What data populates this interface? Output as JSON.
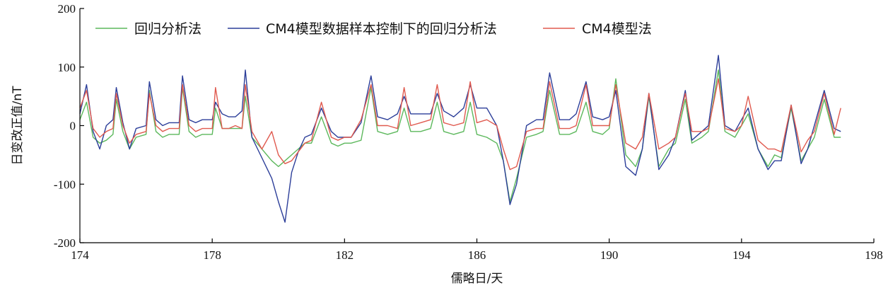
{
  "chart_data": {
    "type": "line",
    "title": "",
    "xlabel": "儒略日/天",
    "ylabel": "日变改正值/nT",
    "xlim": [
      174,
      198
    ],
    "ylim": [
      -200,
      200
    ],
    "x_ticks": [
      174,
      178,
      182,
      186,
      190,
      194,
      198
    ],
    "y_ticks": [
      -200,
      -100,
      0,
      100,
      200
    ],
    "grid": false,
    "legend_position": "top-left",
    "series": [
      {
        "name": "回归分析法",
        "color": "#5cb85c",
        "x": [
          174.0,
          174.2,
          174.4,
          174.6,
          174.8,
          175.0,
          175.1,
          175.3,
          175.5,
          175.7,
          176.0,
          176.1,
          176.3,
          176.5,
          176.7,
          177.0,
          177.1,
          177.3,
          177.5,
          177.7,
          178.0,
          178.1,
          178.3,
          178.5,
          178.7,
          178.9,
          179.0,
          179.2,
          179.5,
          179.8,
          180.0,
          180.2,
          180.4,
          180.6,
          180.8,
          181.0,
          181.3,
          181.6,
          181.8,
          182.0,
          182.2,
          182.5,
          182.8,
          183.0,
          183.3,
          183.6,
          183.8,
          184.0,
          184.3,
          184.6,
          184.8,
          185.0,
          185.3,
          185.6,
          185.8,
          186.0,
          186.3,
          186.6,
          186.8,
          187.0,
          187.2,
          187.5,
          187.8,
          188.0,
          188.2,
          188.5,
          188.8,
          189.0,
          189.3,
          189.5,
          189.8,
          190.0,
          190.2,
          190.5,
          190.8,
          191.0,
          191.2,
          191.5,
          191.8,
          192.0,
          192.3,
          192.5,
          192.8,
          193.0,
          193.3,
          193.5,
          193.8,
          194.0,
          194.2,
          194.5,
          194.8,
          195.0,
          195.2,
          195.5,
          195.8,
          196.0,
          196.2,
          196.5,
          196.8,
          197.0
        ],
        "values": [
          10,
          40,
          -20,
          -30,
          -25,
          -15,
          45,
          -10,
          -40,
          -20,
          -15,
          60,
          -10,
          -20,
          -15,
          -15,
          65,
          -10,
          -20,
          -15,
          -15,
          30,
          -5,
          -5,
          -5,
          -5,
          50,
          -20,
          -40,
          -60,
          -70,
          -60,
          -50,
          -40,
          -30,
          -30,
          15,
          -30,
          -35,
          -30,
          -30,
          -25,
          65,
          -10,
          -15,
          -10,
          30,
          -10,
          -10,
          -5,
          40,
          -10,
          -15,
          -10,
          40,
          -15,
          -20,
          -30,
          -60,
          -130,
          -90,
          -20,
          -15,
          -10,
          60,
          -15,
          -15,
          -10,
          40,
          -10,
          -15,
          -5,
          80,
          -50,
          -70,
          -40,
          50,
          -70,
          -40,
          -30,
          45,
          -30,
          -20,
          -10,
          95,
          -10,
          -20,
          0,
          20,
          -40,
          -70,
          -50,
          -55,
          30,
          -60,
          -40,
          -20,
          45,
          -20,
          -20
        ]
      },
      {
        "name": "CM4模型数据样本控制下的回归分析法",
        "color": "#2c3e99",
        "x": [
          174.0,
          174.2,
          174.4,
          174.6,
          174.8,
          175.0,
          175.1,
          175.3,
          175.5,
          175.7,
          176.0,
          176.1,
          176.3,
          176.5,
          176.7,
          177.0,
          177.1,
          177.3,
          177.5,
          177.7,
          178.0,
          178.1,
          178.3,
          178.5,
          178.7,
          178.9,
          179.0,
          179.2,
          179.5,
          179.8,
          180.0,
          180.2,
          180.4,
          180.6,
          180.8,
          181.0,
          181.3,
          181.6,
          181.8,
          182.0,
          182.2,
          182.5,
          182.8,
          183.0,
          183.3,
          183.6,
          183.8,
          184.0,
          184.3,
          184.6,
          184.8,
          185.0,
          185.3,
          185.6,
          185.8,
          186.0,
          186.3,
          186.6,
          186.8,
          187.0,
          187.2,
          187.5,
          187.8,
          188.0,
          188.2,
          188.5,
          188.8,
          189.0,
          189.3,
          189.5,
          189.8,
          190.0,
          190.2,
          190.5,
          190.8,
          191.0,
          191.2,
          191.5,
          191.8,
          192.0,
          192.3,
          192.5,
          192.8,
          193.0,
          193.3,
          193.5,
          193.8,
          194.0,
          194.2,
          194.5,
          194.8,
          195.0,
          195.2,
          195.5,
          195.8,
          196.0,
          196.2,
          196.5,
          196.8,
          197.0
        ],
        "values": [
          20,
          70,
          -10,
          -40,
          0,
          10,
          65,
          5,
          -40,
          -5,
          0,
          75,
          10,
          0,
          5,
          5,
          85,
          10,
          5,
          10,
          10,
          40,
          20,
          15,
          15,
          25,
          95,
          -20,
          -55,
          -90,
          -130,
          -165,
          -80,
          -45,
          -20,
          -15,
          30,
          -10,
          -20,
          -20,
          -20,
          5,
          85,
          15,
          10,
          20,
          50,
          20,
          20,
          20,
          55,
          25,
          15,
          30,
          70,
          30,
          30,
          0,
          -60,
          -135,
          -100,
          0,
          10,
          10,
          90,
          10,
          10,
          20,
          75,
          15,
          10,
          15,
          60,
          -70,
          -85,
          -40,
          55,
          -75,
          -50,
          -20,
          60,
          -25,
          -10,
          0,
          120,
          0,
          -10,
          10,
          30,
          -40,
          -75,
          -60,
          -60,
          35,
          -65,
          -40,
          0,
          60,
          -5,
          -10
        ]
      },
      {
        "name": "CM4模型法",
        "color": "#e05a4f",
        "x": [
          174.0,
          174.2,
          174.4,
          174.6,
          174.8,
          175.0,
          175.1,
          175.3,
          175.5,
          175.7,
          176.0,
          176.1,
          176.3,
          176.5,
          176.7,
          177.0,
          177.1,
          177.3,
          177.5,
          177.7,
          178.0,
          178.1,
          178.3,
          178.5,
          178.7,
          178.9,
          179.0,
          179.2,
          179.5,
          179.8,
          180.0,
          180.2,
          180.4,
          180.6,
          180.8,
          181.0,
          181.3,
          181.6,
          181.8,
          182.0,
          182.2,
          182.5,
          182.8,
          183.0,
          183.3,
          183.6,
          183.8,
          184.0,
          184.3,
          184.6,
          184.8,
          185.0,
          185.3,
          185.6,
          185.8,
          186.0,
          186.3,
          186.6,
          186.8,
          187.0,
          187.2,
          187.5,
          187.8,
          188.0,
          188.2,
          188.5,
          188.8,
          189.0,
          189.3,
          189.5,
          189.8,
          190.0,
          190.2,
          190.5,
          190.8,
          191.0,
          191.2,
          191.5,
          191.8,
          192.0,
          192.3,
          192.5,
          192.8,
          193.0,
          193.3,
          193.5,
          193.8,
          194.0,
          194.2,
          194.5,
          194.8,
          195.0,
          195.2,
          195.5,
          195.8,
          196.0,
          196.2,
          196.5,
          196.8,
          197.0
        ],
        "values": [
          30,
          60,
          -5,
          -20,
          -10,
          -5,
          55,
          0,
          -30,
          -15,
          -10,
          55,
          0,
          -10,
          -5,
          -5,
          70,
          0,
          -10,
          -5,
          -5,
          65,
          -5,
          -5,
          0,
          -5,
          70,
          -10,
          -40,
          -10,
          -50,
          -65,
          -60,
          -45,
          -30,
          -25,
          40,
          -20,
          -25,
          -20,
          -20,
          10,
          70,
          0,
          0,
          -5,
          65,
          0,
          5,
          10,
          70,
          5,
          0,
          5,
          75,
          5,
          10,
          0,
          -40,
          -75,
          -70,
          -10,
          -5,
          -5,
          75,
          -5,
          -5,
          0,
          70,
          0,
          0,
          0,
          70,
          -30,
          -40,
          -20,
          55,
          -40,
          -30,
          -20,
          55,
          -10,
          -10,
          -5,
          80,
          -5,
          -10,
          0,
          50,
          -25,
          -40,
          -40,
          -45,
          35,
          -45,
          -25,
          -10,
          55,
          -15,
          30
        ]
      }
    ]
  }
}
